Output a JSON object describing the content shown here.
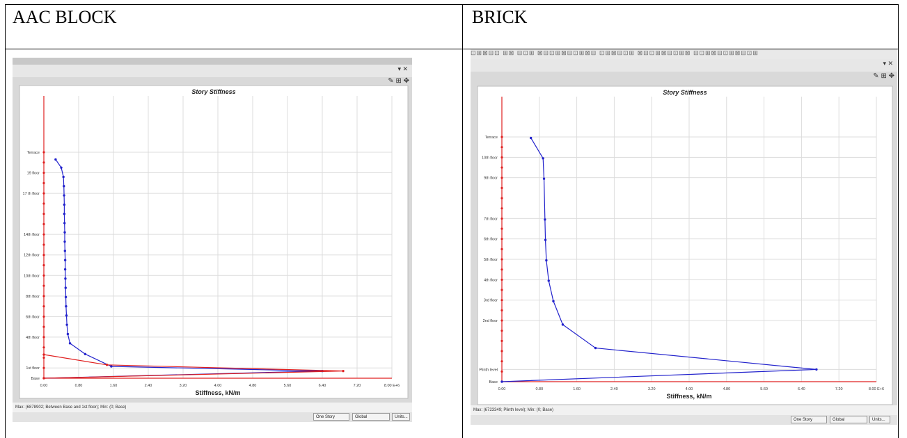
{
  "table": {
    "left_header": "AAC BLOCK",
    "right_header": "BRICK"
  },
  "left_panel": {
    "status_text": "Max: (6878902; Between Base and 1st floor); Min: (0; Base)",
    "buttons": [
      "One Story",
      "Global",
      "Units..."
    ]
  },
  "right_panel": {
    "status_text": "Max: (6723349; Plinth level); Min: (0; Base)",
    "buttons": [
      "One Story",
      "Global",
      "Units..."
    ]
  },
  "colors": {
    "series": "#2222cc",
    "axis_red": "#e02020",
    "plot_bg": "#d9d9d9"
  },
  "chart_data": [
    {
      "type": "line",
      "title": "Story Stiffness",
      "xlabel": "Stiffness, kN/m",
      "x_ticks": [
        "0.00",
        "0.80",
        "1.60",
        "2.40",
        "3.20",
        "4.00",
        "4.80",
        "5.60",
        "6.40",
        "7.20",
        "8.00 E+6"
      ],
      "xlim": [
        0,
        8
      ],
      "story_labels": [
        {
          "label": "Terrace",
          "level": 22
        },
        {
          "label": "19 floor",
          "level": 20
        },
        {
          "label": "17 th floor",
          "level": 18
        },
        {
          "label": "14th floor",
          "level": 14
        },
        {
          "label": "12th floor",
          "level": 12
        },
        {
          "label": "10th floor",
          "level": 10
        },
        {
          "label": "8th floor",
          "level": 8
        },
        {
          "label": "6th floor",
          "level": 6
        },
        {
          "label": "4th floor",
          "level": 4
        },
        {
          "label": "1st floor",
          "level": 1
        },
        {
          "label": "Base",
          "level": 0
        }
      ],
      "ylim": [
        0,
        22
      ],
      "series": [
        {
          "color": "#2222cc",
          "points": [
            [
              6.4,
              0.7
            ],
            [
              1.55,
              1.15
            ],
            [
              0.95,
              2.35
            ],
            [
              0.6,
              3.4
            ],
            [
              0.55,
              4.3
            ],
            [
              0.53,
              5.2
            ],
            [
              0.52,
              6.1
            ],
            [
              0.51,
              7.0
            ],
            [
              0.505,
              7.9
            ],
            [
              0.5,
              8.8
            ],
            [
              0.495,
              9.7
            ],
            [
              0.49,
              10.6
            ],
            [
              0.49,
              11.5
            ],
            [
              0.485,
              12.4
            ],
            [
              0.48,
              13.3
            ],
            [
              0.48,
              14.2
            ],
            [
              0.475,
              15.1
            ],
            [
              0.47,
              16.0
            ],
            [
              0.47,
              16.9
            ],
            [
              0.465,
              17.8
            ],
            [
              0.46,
              18.7
            ],
            [
              0.45,
              19.6
            ],
            [
              0.4,
              20.5
            ],
            [
              0.27,
              21.3
            ]
          ],
          "closing_segment": [
            [
              6.4,
              0.7
            ],
            [
              0.0,
              0.0
            ]
          ]
        },
        {
          "color": "#e02020",
          "points": [
            [
              0.0,
              2.3
            ],
            [
              1.45,
              1.3
            ],
            [
              6.88,
              0.7
            ],
            [
              0.0,
              0.0
            ]
          ]
        }
      ]
    },
    {
      "type": "line",
      "title": "Story Stiffness",
      "xlabel": "Stiffness, kN/m",
      "x_ticks": [
        "0.00",
        "0.80",
        "1.60",
        "2.40",
        "3.20",
        "4.00",
        "4.80",
        "5.60",
        "6.40",
        "7.20",
        "8.00 E+6"
      ],
      "xlim": [
        0,
        8
      ],
      "story_labels": [
        {
          "label": "Terrace",
          "level": 12
        },
        {
          "label": "10th floor",
          "level": 11
        },
        {
          "label": "9th floor",
          "level": 10
        },
        {
          "label": "7th floor",
          "level": 8
        },
        {
          "label": "6th floor",
          "level": 7
        },
        {
          "label": "5th floor",
          "level": 6
        },
        {
          "label": "4th floor",
          "level": 5
        },
        {
          "label": "3rd floor",
          "level": 4
        },
        {
          "label": "2nd floor",
          "level": 3
        },
        {
          "label": "Plinth level",
          "level": 0.6
        },
        {
          "label": "Base",
          "level": 0
        }
      ],
      "ylim": [
        0,
        12
      ],
      "series": [
        {
          "color": "#2222cc",
          "points": [
            [
              0.0,
              0.0
            ],
            [
              6.72,
              0.6
            ],
            [
              2.0,
              1.65
            ],
            [
              1.3,
              2.8
            ],
            [
              1.1,
              3.95
            ],
            [
              1.0,
              4.95
            ],
            [
              0.95,
              5.95
            ],
            [
              0.93,
              6.95
            ],
            [
              0.92,
              7.95
            ],
            [
              0.9,
              9.95
            ],
            [
              0.88,
              10.95
            ],
            [
              0.62,
              11.95
            ]
          ]
        }
      ]
    }
  ]
}
